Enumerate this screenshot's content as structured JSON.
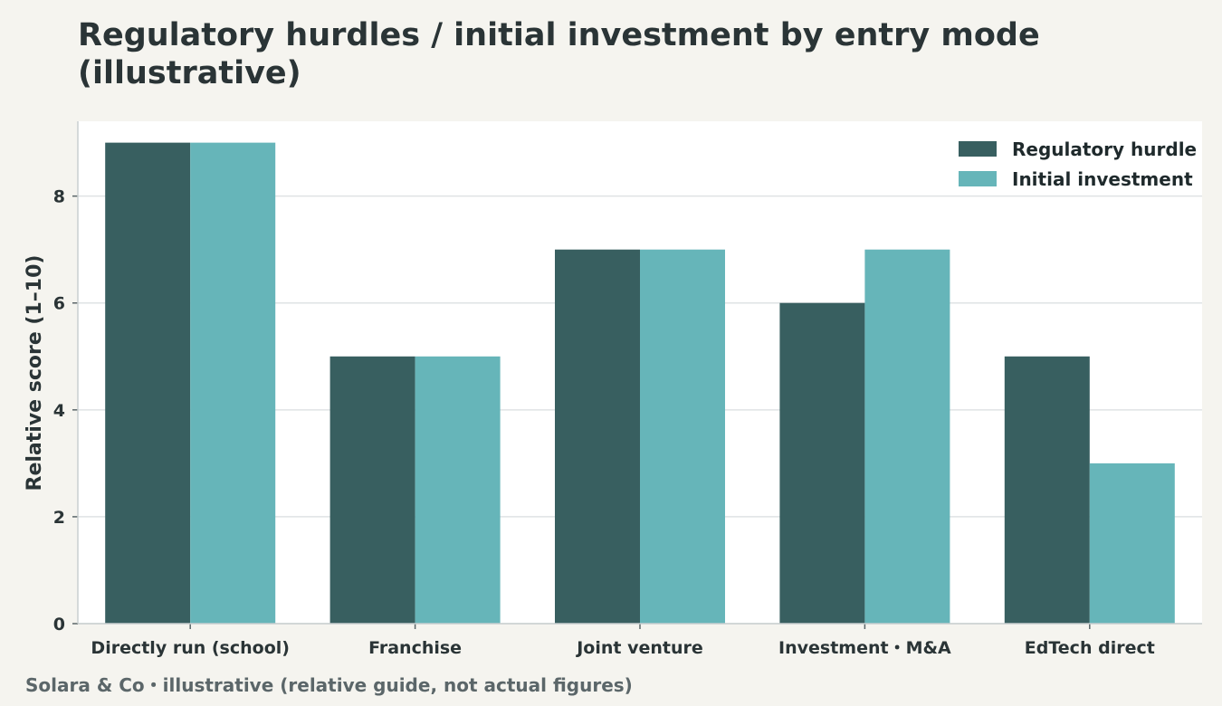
{
  "chart_data": {
    "type": "bar",
    "title": "Regulatory hurdles / initial investment by entry mode (illustrative)",
    "ylabel": "Relative score (1–10)",
    "xlabel": "",
    "ylim": [
      0,
      9.4
    ],
    "yticks": [
      0,
      2,
      4,
      6,
      8
    ],
    "grid": true,
    "legend_position": "top-right",
    "categories": [
      "Directly run (school)",
      "Franchise",
      "Joint venture",
      "Investment・M&A",
      "EdTech direct"
    ],
    "series": [
      {
        "name": "Regulatory hurdle",
        "color": "#385f60",
        "values": [
          9,
          5,
          7,
          6,
          5
        ]
      },
      {
        "name": "Initial investment",
        "color": "#66b5b9",
        "values": [
          9,
          5,
          7,
          7,
          3
        ]
      }
    ]
  },
  "footer": {
    "note": "Solara & Co・illustrative (relative guide, not actual figures)"
  }
}
